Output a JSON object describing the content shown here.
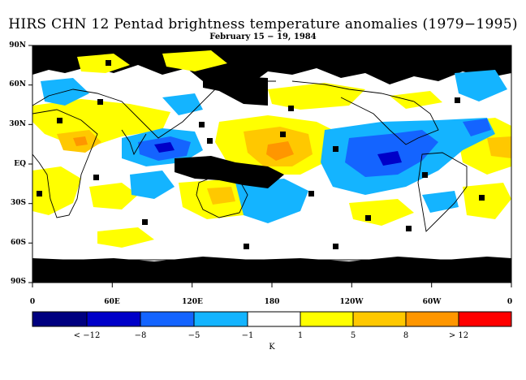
{
  "title": "HIRS CHN 12 Pentad brightness temperature anomalies (1979−1995)",
  "subtitle": "February 15 − 19, 1984",
  "lat_labels": [
    "90N",
    "60N",
    "30N",
    "EQ",
    "30S",
    "60S",
    "90S"
  ],
  "lon_labels": [
    "0",
    "60E",
    "120E",
    "180",
    "120W",
    "60W",
    "0"
  ],
  "colorbar": {
    "colors": [
      "#000080",
      "#0000c8",
      "#1464ff",
      "#14b4ff",
      "#ffffff",
      "#ffff00",
      "#ffc800",
      "#ff9600",
      "#ff6400",
      "#ff0000"
    ],
    "labels": [
      "< −12",
      "−8",
      "−5",
      "−1",
      "1",
      "5",
      "8",
      "> 12"
    ],
    "units": "K"
  },
  "legend_colors": {
    "missing": "#000000",
    "coast": "#000000",
    "yellow": "#ffff00",
    "orange": "#ffc800",
    "dark_orange": "#ff9600",
    "light_blue": "#14b4ff",
    "blue": "#1464ff",
    "dark_blue": "#0000c8"
  }
}
